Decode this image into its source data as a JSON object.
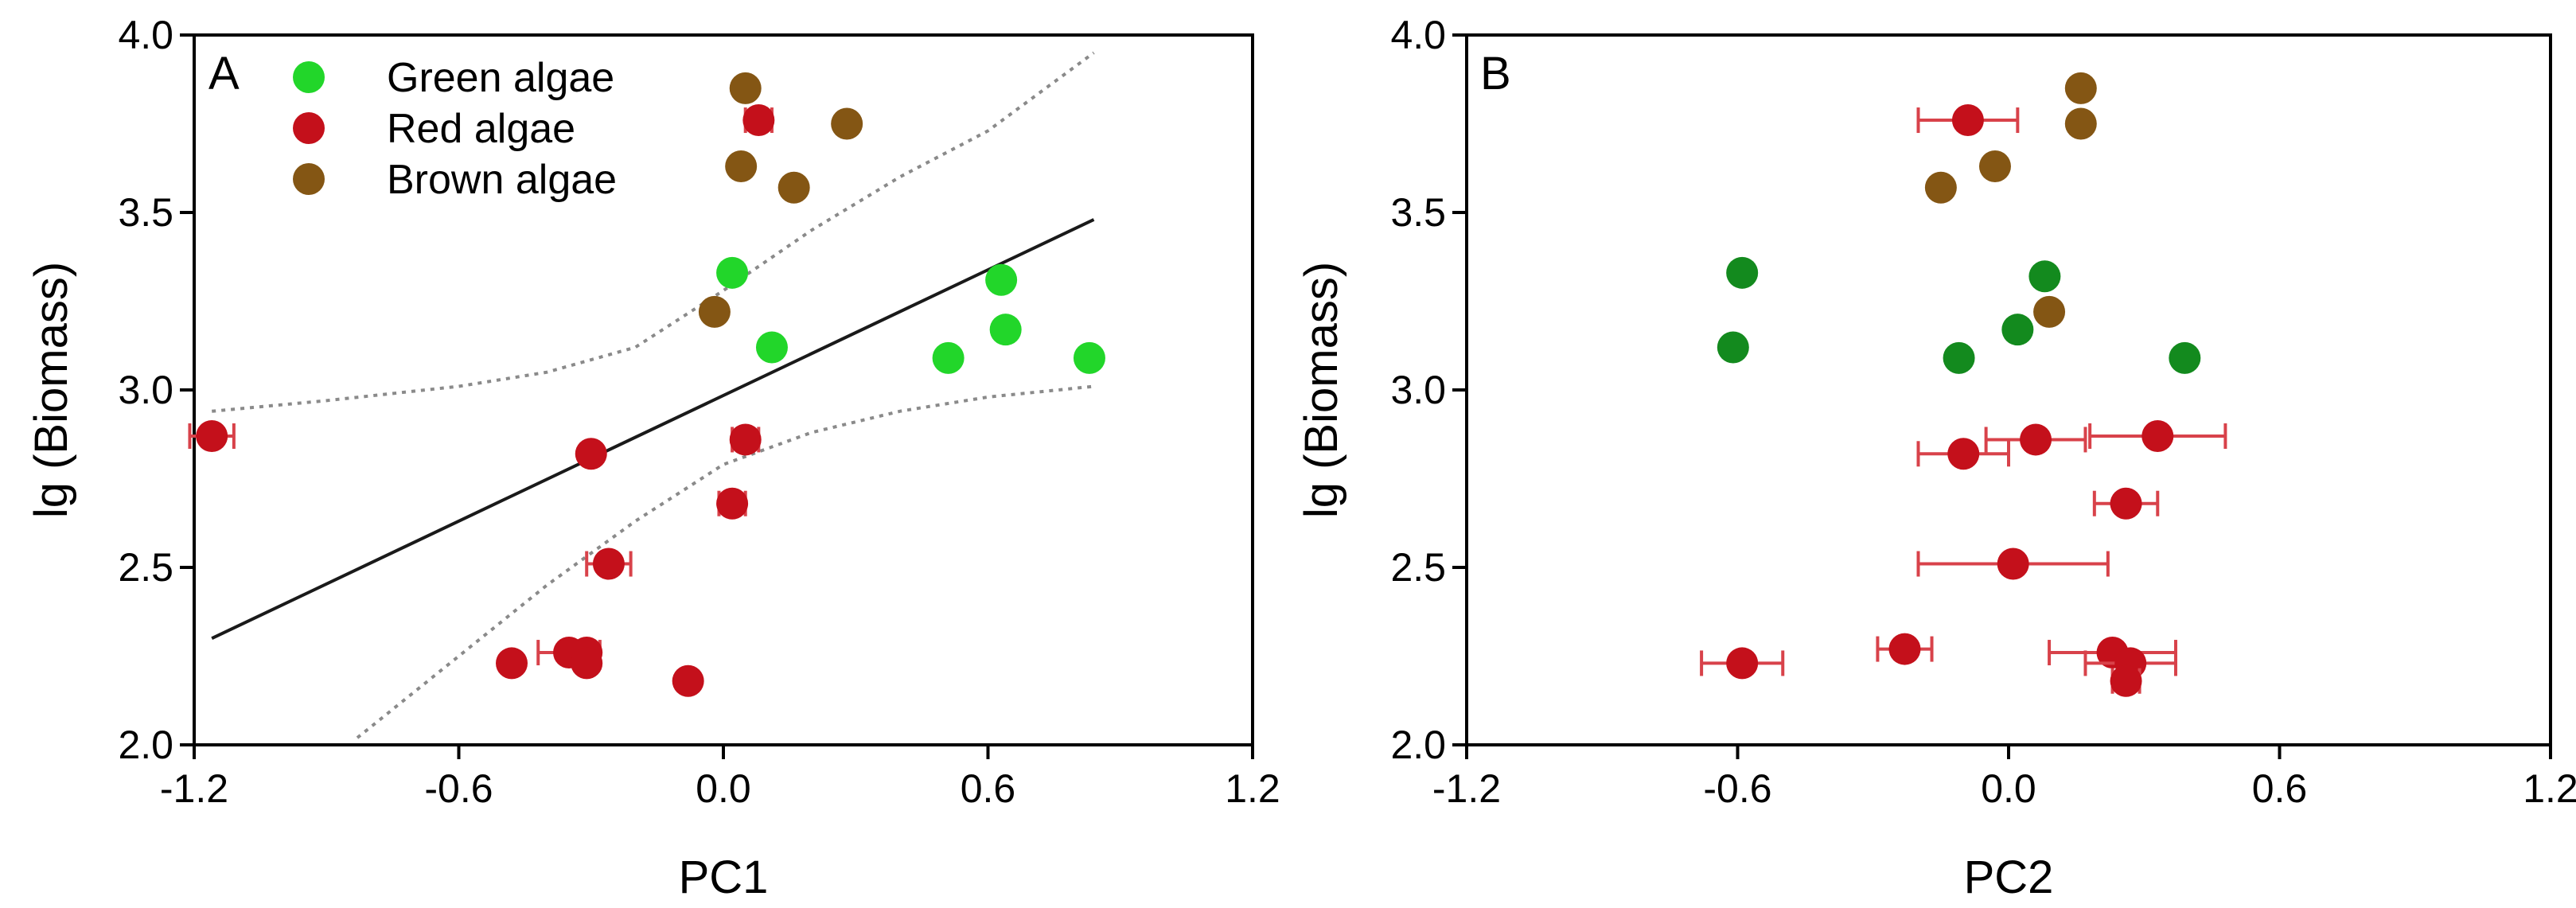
{
  "colors": {
    "green_light": "#22d62a",
    "green_dark": "#138a1e",
    "red": "#c4101b",
    "red_errorbar": "#d8424a",
    "brown": "#845614",
    "fit_line": "#1a1a1a",
    "ci_line": "#8a8a8a"
  },
  "chart_data": [
    {
      "type": "scatter",
      "panel": "A",
      "xlabel": "PC1",
      "ylabel": "lg (Biomass)",
      "xlim": [
        -1.2,
        1.2
      ],
      "ylim": [
        2.0,
        4.0
      ],
      "xticks": [
        "-1.2",
        "-0.6",
        "0.0",
        "0.6",
        "1.2"
      ],
      "yticks": [
        "2.0",
        "2.5",
        "3.0",
        "3.5",
        "4.0"
      ],
      "legend": {
        "placement": "top-left",
        "entries": [
          {
            "label": "Green algae",
            "color_key": "green_light"
          },
          {
            "label": "Red algae",
            "color_key": "red"
          },
          {
            "label": "Brown algae",
            "color_key": "brown"
          }
        ]
      },
      "series": [
        {
          "name": "Green algae",
          "color_key": "green_light",
          "points": [
            {
              "x": 0.02,
              "y": 3.33
            },
            {
              "x": 0.11,
              "y": 3.12
            },
            {
              "x": 0.63,
              "y": 3.31
            },
            {
              "x": 0.64,
              "y": 3.17
            },
            {
              "x": 0.51,
              "y": 3.09
            },
            {
              "x": 0.83,
              "y": 3.09
            }
          ]
        },
        {
          "name": "Red algae",
          "color_key": "red",
          "points": [
            {
              "x": 0.08,
              "y": 3.76,
              "xerr": 0.03
            },
            {
              "x": -1.16,
              "y": 2.87,
              "xerr": 0.05
            },
            {
              "x": -0.3,
              "y": 2.82
            },
            {
              "x": 0.05,
              "y": 2.86,
              "xerr": 0.03
            },
            {
              "x": 0.02,
              "y": 2.68,
              "xerr": 0.03
            },
            {
              "x": -0.26,
              "y": 2.51,
              "xerr": 0.05
            },
            {
              "x": -0.48,
              "y": 2.23
            },
            {
              "x": -0.35,
              "y": 2.26,
              "xerr": 0.07
            },
            {
              "x": -0.31,
              "y": 2.26
            },
            {
              "x": -0.31,
              "y": 2.23
            },
            {
              "x": -0.08,
              "y": 2.18
            }
          ]
        },
        {
          "name": "Brown algae",
          "color_key": "brown",
          "points": [
            {
              "x": 0.05,
              "y": 3.85
            },
            {
              "x": 0.28,
              "y": 3.75
            },
            {
              "x": 0.04,
              "y": 3.63
            },
            {
              "x": 0.16,
              "y": 3.57
            },
            {
              "x": -0.02,
              "y": 3.22
            }
          ]
        }
      ],
      "fit_line": {
        "x": [
          -1.16,
          0.84
        ],
        "y": [
          2.3,
          3.48
        ]
      },
      "ci_upper": {
        "x": [
          -1.16,
          -0.9,
          -0.6,
          -0.4,
          -0.2,
          0.0,
          0.2,
          0.4,
          0.6,
          0.84
        ],
        "y": [
          2.94,
          2.97,
          3.01,
          3.05,
          3.12,
          3.28,
          3.45,
          3.6,
          3.73,
          3.95
        ]
      },
      "ci_lower": {
        "x": [
          -0.83,
          -0.6,
          -0.4,
          -0.2,
          0.0,
          0.2,
          0.4,
          0.6,
          0.84
        ],
        "y": [
          2.02,
          2.25,
          2.45,
          2.63,
          2.79,
          2.88,
          2.94,
          2.98,
          3.01
        ]
      }
    },
    {
      "type": "scatter",
      "panel": "B",
      "xlabel": "PC2",
      "ylabel": "lg (Biomass)",
      "xlim": [
        -1.2,
        1.2
      ],
      "ylim": [
        2.0,
        4.0
      ],
      "xticks": [
        "-1.2",
        "-0.6",
        "0.0",
        "0.6",
        "1.2"
      ],
      "yticks": [
        "2.0",
        "2.5",
        "3.0",
        "3.5",
        "4.0"
      ],
      "series": [
        {
          "name": "Green algae",
          "color_key": "green_dark",
          "points": [
            {
              "x": -0.59,
              "y": 3.33
            },
            {
              "x": -0.61,
              "y": 3.12
            },
            {
              "x": 0.08,
              "y": 3.32
            },
            {
              "x": 0.02,
              "y": 3.17
            },
            {
              "x": -0.11,
              "y": 3.09
            },
            {
              "x": 0.39,
              "y": 3.09
            }
          ]
        },
        {
          "name": "Red algae",
          "color_key": "red",
          "points": [
            {
              "x": -0.09,
              "y": 3.76,
              "xerr": 0.11
            },
            {
              "x": 0.33,
              "y": 2.87,
              "xerr": 0.15
            },
            {
              "x": 0.06,
              "y": 2.86,
              "xerr": 0.11
            },
            {
              "x": -0.1,
              "y": 2.82,
              "xerr": 0.1
            },
            {
              "x": 0.26,
              "y": 2.68,
              "xerr": 0.07
            },
            {
              "x": 0.01,
              "y": 2.51,
              "xerr": 0.21
            },
            {
              "x": -0.59,
              "y": 2.23,
              "xerr": 0.09
            },
            {
              "x": -0.23,
              "y": 2.27,
              "xerr": 0.06
            },
            {
              "x": 0.23,
              "y": 2.26,
              "xerr": 0.14
            },
            {
              "x": 0.27,
              "y": 2.23,
              "xerr": 0.1
            },
            {
              "x": 0.26,
              "y": 2.18,
              "xerr": 0.03
            }
          ]
        },
        {
          "name": "Brown algae",
          "color_key": "brown",
          "points": [
            {
              "x": 0.16,
              "y": 3.85
            },
            {
              "x": 0.16,
              "y": 3.75
            },
            {
              "x": -0.03,
              "y": 3.63
            },
            {
              "x": -0.15,
              "y": 3.57
            },
            {
              "x": 0.09,
              "y": 3.22
            }
          ]
        }
      ]
    }
  ]
}
